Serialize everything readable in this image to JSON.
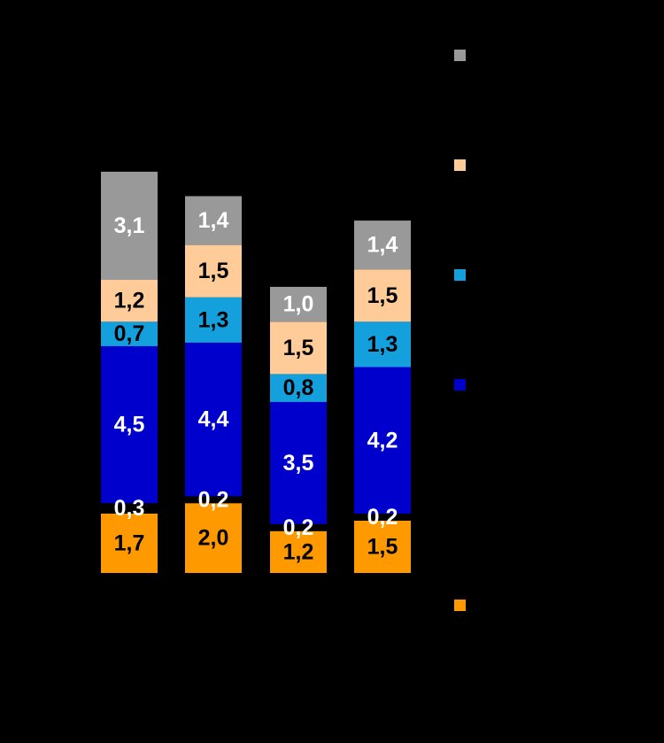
{
  "chart_data": {
    "type": "bar",
    "stacked": true,
    "categories": [
      "",
      "",
      "",
      ""
    ],
    "series": [
      {
        "color": "#FF9900",
        "values": [
          1.7,
          2.0,
          1.2,
          1.5
        ],
        "labels": [
          "1,7",
          "2,0",
          "1,2",
          "1,5"
        ],
        "label_color": "#000000"
      },
      {
        "color": "#000000",
        "values": [
          0.3,
          0.2,
          0.2,
          0.2
        ],
        "labels": [
          "0,3",
          "0,2",
          "0,2",
          "0,2"
        ],
        "label_color": "#FFFFFF"
      },
      {
        "color": "#0000CC",
        "values": [
          4.5,
          4.4,
          3.5,
          4.2
        ],
        "labels": [
          "4,5",
          "4,4",
          "3,5",
          "4,2"
        ],
        "label_color": "#FFFFFF"
      },
      {
        "color": "#14A0DC",
        "values": [
          0.7,
          1.3,
          0.8,
          1.3
        ],
        "labels": [
          "0,7",
          "1,3",
          "0,8",
          "1,3"
        ],
        "label_color": "#000000"
      },
      {
        "color": "#FFCC99",
        "values": [
          1.2,
          1.5,
          1.5,
          1.5
        ],
        "labels": [
          "1,2",
          "1,5",
          "1,5",
          "1,5"
        ],
        "label_color": "#000000"
      },
      {
        "color": "#999999",
        "values": [
          3.1,
          1.4,
          1.0,
          1.4
        ],
        "labels": [
          "3,1",
          "1,4",
          "1,0",
          "1,4"
        ],
        "label_color": "#FFFFFF"
      }
    ],
    "legend": {
      "placement": "right",
      "entries": [
        {
          "color": "#999999",
          "label": ""
        },
        {
          "color": "#FFCC99",
          "label": ""
        },
        {
          "color": "#14A0DC",
          "label": ""
        },
        {
          "color": "#0000CC",
          "label": ""
        },
        {
          "color": "#FF9900",
          "label": ""
        }
      ]
    },
    "title": "",
    "xlabel": "",
    "ylabel": "",
    "background": "#000000",
    "grid": false
  }
}
